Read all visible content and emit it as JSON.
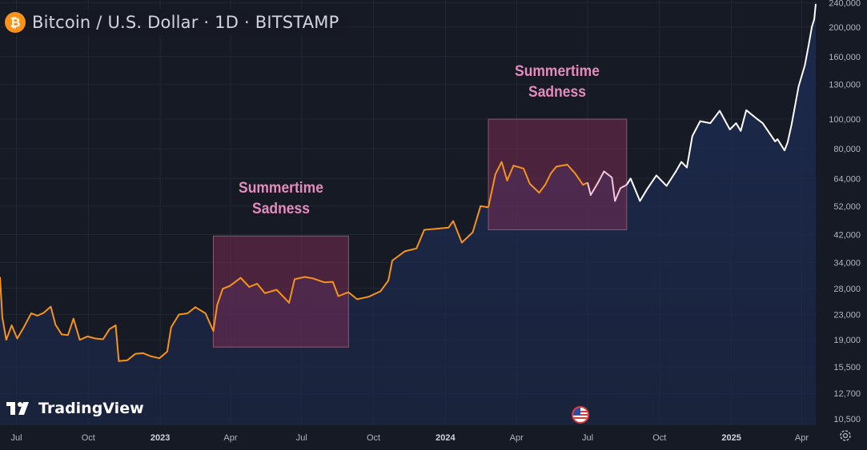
{
  "header": {
    "title": "Bitcoin / U.S. Dollar · 1D · BITSTAMP",
    "icon": "bitcoin-icon",
    "icon_color": "#f7931a"
  },
  "annotations": [
    {
      "line1": "Summertime",
      "line2": "Sadness",
      "color": "#e58bbd"
    },
    {
      "line1": "Summertime",
      "line2": "Sadness",
      "color": "#e58bbd"
    }
  ],
  "brand": {
    "name": "TradingView",
    "icon": "tradingview-logo-icon"
  },
  "colors": {
    "background": "#161a25",
    "line_orange": "#f7931a",
    "line_white": "#ffffff",
    "highlight_box": "#8e2f5a",
    "area_fill": "#1c2a4e",
    "axis_text": "#b2b5be"
  },
  "chart_data": {
    "type": "line",
    "title": "Bitcoin / U.S. Dollar · 1D · BITSTAMP",
    "xlabel": "",
    "ylabel": "",
    "y_scale": "log",
    "ylim": [
      10000,
      245000
    ],
    "xlim": [
      "2022-06-10",
      "2025-04-20"
    ],
    "y_ticks": [
      {
        "label": "240,000",
        "value": 240000
      },
      {
        "label": "200,000",
        "value": 200000
      },
      {
        "label": "160,000",
        "value": 160000
      },
      {
        "label": "130,000",
        "value": 130000
      },
      {
        "label": "100,000",
        "value": 100000
      },
      {
        "label": "80,000",
        "value": 80000
      },
      {
        "label": "64,000",
        "value": 64000
      },
      {
        "label": "52,000",
        "value": 52000
      },
      {
        "label": "42,000",
        "value": 42000
      },
      {
        "label": "34,000",
        "value": 34000
      },
      {
        "label": "28,000",
        "value": 28000
      },
      {
        "label": "23,000",
        "value": 23000
      },
      {
        "label": "19,000",
        "value": 19000
      },
      {
        "label": "15,500",
        "value": 15500
      },
      {
        "label": "12,700",
        "value": 12700
      },
      {
        "label": "10,500",
        "value": 10500
      }
    ],
    "x_ticks": [
      {
        "label": "Jul",
        "date": "2022-07-01",
        "bold": false
      },
      {
        "label": "Oct",
        "date": "2022-10-01",
        "bold": false
      },
      {
        "label": "2023",
        "date": "2023-01-01",
        "bold": true
      },
      {
        "label": "Apr",
        "date": "2023-04-01",
        "bold": false
      },
      {
        "label": "Jul",
        "date": "2023-07-01",
        "bold": false
      },
      {
        "label": "Oct",
        "date": "2023-10-01",
        "bold": false
      },
      {
        "label": "2024",
        "date": "2024-01-01",
        "bold": true
      },
      {
        "label": "Apr",
        "date": "2024-04-01",
        "bold": false
      },
      {
        "label": "Jul",
        "date": "2024-07-01",
        "bold": false
      },
      {
        "label": "Oct",
        "date": "2024-10-01",
        "bold": false
      },
      {
        "label": "2025",
        "date": "2025-01-01",
        "bold": true
      },
      {
        "label": "Apr",
        "date": "2025-04-01",
        "bold": false
      }
    ],
    "highlight_boxes": [
      {
        "x0": "2023-03-10",
        "x1": "2023-08-30",
        "y0": 18000,
        "y1": 41500
      },
      {
        "x0": "2024-02-25",
        "x1": "2024-08-20",
        "y0": 43500,
        "y1": 100000
      }
    ],
    "series": [
      {
        "color": "#f7931a",
        "points": [
          [
            "2022-06-10",
            30500
          ],
          [
            "2022-06-13",
            22500
          ],
          [
            "2022-06-18",
            19000
          ],
          [
            "2022-06-25",
            21200
          ],
          [
            "2022-07-02",
            19200
          ],
          [
            "2022-07-10",
            20800
          ],
          [
            "2022-07-20",
            23200
          ],
          [
            "2022-07-28",
            22800
          ],
          [
            "2022-08-05",
            23300
          ],
          [
            "2022-08-14",
            24400
          ],
          [
            "2022-08-20",
            21300
          ],
          [
            "2022-08-28",
            19800
          ],
          [
            "2022-09-05",
            19700
          ],
          [
            "2022-09-12",
            22300
          ],
          [
            "2022-09-20",
            19000
          ],
          [
            "2022-09-30",
            19500
          ],
          [
            "2022-10-10",
            19200
          ],
          [
            "2022-10-20",
            19100
          ],
          [
            "2022-10-28",
            20600
          ],
          [
            "2022-11-05",
            21200
          ],
          [
            "2022-11-09",
            16200
          ],
          [
            "2022-11-20",
            16300
          ],
          [
            "2022-11-30",
            17100
          ],
          [
            "2022-12-10",
            17200
          ],
          [
            "2022-12-20",
            16800
          ],
          [
            "2022-12-31",
            16550
          ],
          [
            "2023-01-10",
            17400
          ],
          [
            "2023-01-15",
            20900
          ],
          [
            "2023-01-25",
            23000
          ],
          [
            "2023-02-05",
            23200
          ],
          [
            "2023-02-15",
            24300
          ],
          [
            "2023-02-28",
            23200
          ],
          [
            "2023-03-10",
            20300
          ],
          [
            "2023-03-15",
            24700
          ],
          [
            "2023-03-22",
            27900
          ],
          [
            "2023-03-31",
            28500
          ],
          [
            "2023-04-14",
            30300
          ],
          [
            "2023-04-25",
            28300
          ],
          [
            "2023-05-05",
            29000
          ],
          [
            "2023-05-15",
            27000
          ],
          [
            "2023-05-30",
            27700
          ],
          [
            "2023-06-10",
            25900
          ],
          [
            "2023-06-15",
            25100
          ],
          [
            "2023-06-22",
            30000
          ],
          [
            "2023-07-05",
            30500
          ],
          [
            "2023-07-15",
            30200
          ],
          [
            "2023-07-30",
            29300
          ],
          [
            "2023-08-10",
            29400
          ],
          [
            "2023-08-17",
            26400
          ],
          [
            "2023-08-30",
            27200
          ],
          [
            "2023-09-10",
            25800
          ],
          [
            "2023-09-25",
            26300
          ],
          [
            "2023-10-10",
            27400
          ],
          [
            "2023-10-20",
            29700
          ],
          [
            "2023-10-25",
            34500
          ],
          [
            "2023-11-10",
            37000
          ],
          [
            "2023-11-25",
            37800
          ],
          [
            "2023-12-05",
            43500
          ],
          [
            "2023-12-20",
            43800
          ],
          [
            "2024-01-05",
            44200
          ],
          [
            "2024-01-11",
            46500
          ],
          [
            "2024-01-22",
            39500
          ],
          [
            "2024-02-05",
            42700
          ],
          [
            "2024-02-15",
            52000
          ],
          [
            "2024-02-25",
            51500
          ]
        ]
      },
      {
        "color": "#f7931a",
        "points": [
          [
            "2024-02-25",
            51500
          ],
          [
            "2024-03-05",
            66000
          ],
          [
            "2024-03-13",
            72500
          ],
          [
            "2024-03-20",
            63000
          ],
          [
            "2024-03-28",
            70500
          ],
          [
            "2024-04-10",
            69000
          ],
          [
            "2024-04-18",
            61500
          ],
          [
            "2024-04-30",
            57500
          ],
          [
            "2024-05-08",
            61200
          ],
          [
            "2024-05-15",
            66500
          ],
          [
            "2024-05-22",
            70000
          ],
          [
            "2024-06-05",
            71000
          ],
          [
            "2024-06-15",
            66500
          ],
          [
            "2024-06-25",
            61000
          ],
          [
            "2024-07-01",
            62000
          ]
        ]
      },
      {
        "color": "#f4c7d9",
        "points": [
          [
            "2024-07-01",
            62000
          ],
          [
            "2024-07-05",
            56500
          ],
          [
            "2024-07-15",
            62500
          ],
          [
            "2024-07-22",
            67500
          ],
          [
            "2024-08-01",
            64500
          ],
          [
            "2024-08-05",
            54000
          ],
          [
            "2024-08-12",
            59500
          ],
          [
            "2024-08-20",
            61000
          ]
        ]
      },
      {
        "color": "#ffffff",
        "points": [
          [
            "2024-08-20",
            61000
          ],
          [
            "2024-08-25",
            64000
          ],
          [
            "2024-09-06",
            54000
          ],
          [
            "2024-09-15",
            59000
          ],
          [
            "2024-09-27",
            65500
          ],
          [
            "2024-10-10",
            60500
          ],
          [
            "2024-10-22",
            67500
          ],
          [
            "2024-10-29",
            72500
          ],
          [
            "2024-11-05",
            69500
          ],
          [
            "2024-11-12",
            88000
          ],
          [
            "2024-11-22",
            98500
          ],
          [
            "2024-12-05",
            97000
          ],
          [
            "2024-12-17",
            106500
          ],
          [
            "2024-12-30",
            92500
          ],
          [
            "2025-01-07",
            97000
          ],
          [
            "2025-01-13",
            91500
          ],
          [
            "2025-01-20",
            107000
          ],
          [
            "2025-02-01",
            101000
          ],
          [
            "2025-02-10",
            97000
          ],
          [
            "2025-02-26",
            84500
          ],
          [
            "2025-03-01",
            86000
          ],
          [
            "2025-03-10",
            79000
          ],
          [
            "2025-03-14",
            84000
          ],
          [
            "2025-03-19",
            96000
          ],
          [
            "2025-03-28",
            128000
          ],
          [
            "2025-04-05",
            150000
          ],
          [
            "2025-04-10",
            175000
          ],
          [
            "2025-04-14",
            200000
          ],
          [
            "2025-04-17",
            212000
          ],
          [
            "2025-04-19",
            238000
          ]
        ]
      }
    ]
  }
}
